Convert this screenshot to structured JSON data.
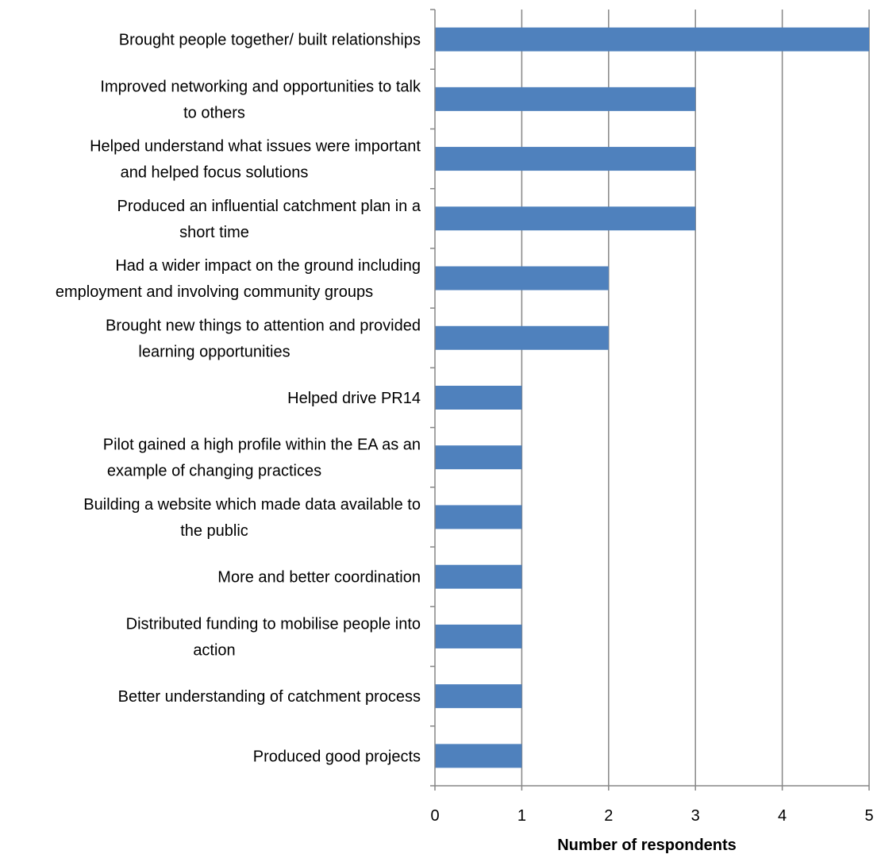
{
  "chart_data": {
    "type": "bar",
    "orientation": "horizontal",
    "categories": [
      "Brought people together/ built relationships",
      "Improved networking and opportunities to talk to others",
      "Helped understand what issues were important and helped focus solutions",
      "Produced an influential catchment plan in a short time",
      "Had a wider impact on the ground including employment and involving community groups",
      "Brought new things to attention and provided learning opportunities",
      "Helped drive PR14",
      "Pilot gained a high profile within the EA as an example of changing practices",
      "Building a website which made data available to the public",
      "More and better coordination",
      "Distributed funding to mobilise people into action",
      "Better understanding of catchment process",
      "Produced good projects"
    ],
    "category_label_lines": [
      [
        "Brought people together/ built relationships"
      ],
      [
        "Improved networking and opportunities to talk",
        "to others"
      ],
      [
        "Helped understand what issues were important",
        "and helped focus solutions"
      ],
      [
        "Produced an influential catchment plan in a",
        "short time"
      ],
      [
        "Had a wider impact on the ground including",
        "employment and involving community groups"
      ],
      [
        "Brought new things to attention and provided",
        "learning opportunities"
      ],
      [
        "Helped drive PR14"
      ],
      [
        "Pilot gained a high profile within the EA as an",
        "example of changing practices"
      ],
      [
        "Building a website which made data available to",
        "the public"
      ],
      [
        "More and better coordination"
      ],
      [
        "Distributed funding to mobilise people into",
        "action"
      ],
      [
        "Better understanding of catchment process"
      ],
      [
        "Produced good projects"
      ]
    ],
    "values": [
      5,
      3,
      3,
      3,
      2,
      2,
      1,
      1,
      1,
      1,
      1,
      1,
      1
    ],
    "xlabel": "Number of respondents",
    "xlim": [
      0,
      5
    ],
    "xticks": [
      0,
      1,
      2,
      3,
      4,
      5
    ],
    "grid": "vertical",
    "legend": "none",
    "colors": {
      "bar": "#4f81bd",
      "grid": "#868686",
      "axis": "#868686"
    }
  }
}
